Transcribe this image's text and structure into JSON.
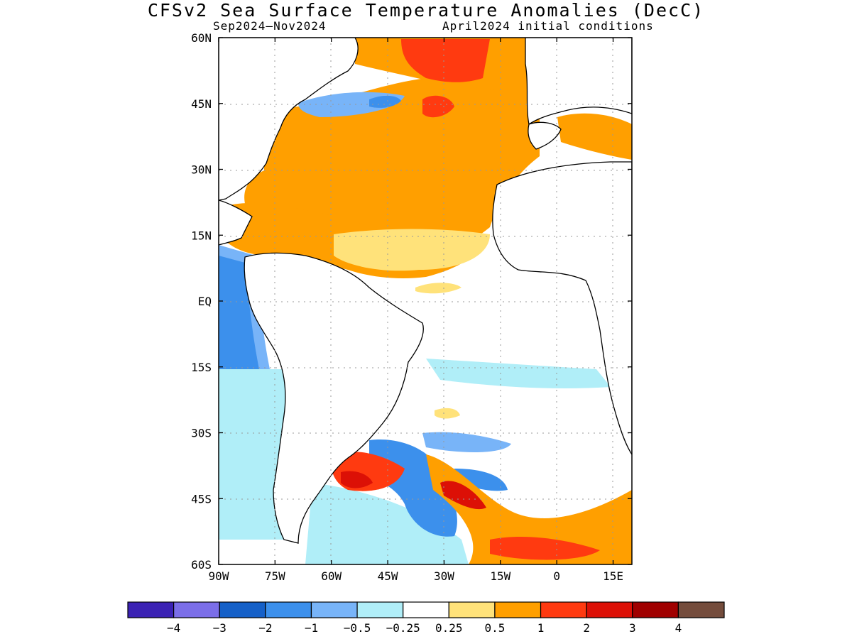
{
  "title": "CFSv2 Sea Surface Temperature Anomalies (DecC)",
  "subtitle_left": "Sep2024–Nov2024",
  "subtitle_right": "April2024 initial conditions",
  "map": {
    "lon_range": [
      -90,
      20
    ],
    "lat_range": [
      -60,
      60
    ],
    "lat_ticks": [
      {
        "value": 60,
        "label": "60N"
      },
      {
        "value": 45,
        "label": "45N"
      },
      {
        "value": 30,
        "label": "30N"
      },
      {
        "value": 15,
        "label": "15N"
      },
      {
        "value": 0,
        "label": "EQ"
      },
      {
        "value": -15,
        "label": "15S"
      },
      {
        "value": -30,
        "label": "30S"
      },
      {
        "value": -45,
        "label": "45S"
      },
      {
        "value": -60,
        "label": "60S"
      }
    ],
    "lon_ticks": [
      {
        "value": -90,
        "label": "90W"
      },
      {
        "value": -75,
        "label": "75W"
      },
      {
        "value": -60,
        "label": "60W"
      },
      {
        "value": -45,
        "label": "45W"
      },
      {
        "value": -30,
        "label": "30W"
      },
      {
        "value": -15,
        "label": "15W"
      },
      {
        "value": 0,
        "label": "0"
      },
      {
        "value": 15,
        "label": "15E"
      }
    ],
    "grid": true
  },
  "colorbar": {
    "colors": [
      "#3b22b4",
      "#7b6ee8",
      "#1560c8",
      "#3c90ec",
      "#78b4f8",
      "#b0eef8",
      "#ffffff",
      "#ffe27a",
      "#ff9f00",
      "#ff3a10",
      "#dc1006",
      "#a00000",
      "#744c3c"
    ],
    "labels": [
      "−4",
      "−3",
      "−2",
      "−1",
      "−0.5",
      "−0.25",
      "0.25",
      "0.5",
      "1",
      "2",
      "3",
      "4"
    ]
  }
}
